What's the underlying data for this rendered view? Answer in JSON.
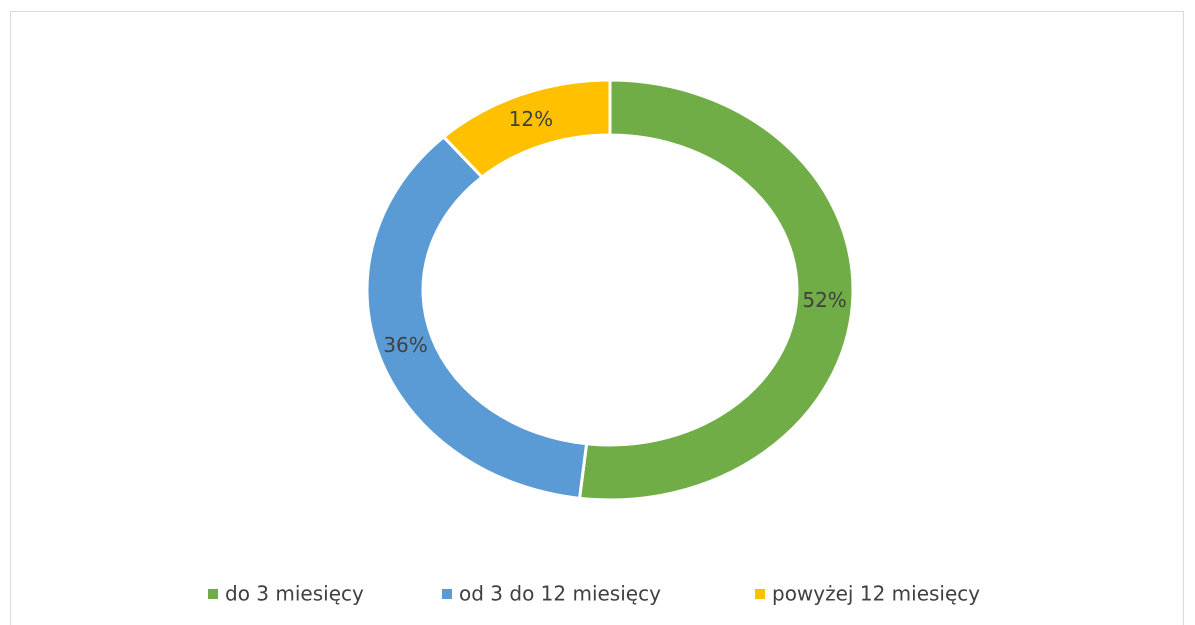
{
  "chart_data": {
    "type": "donut",
    "categories": [
      "do 3 miesięcy",
      "od 3 do 12 miesięcy",
      "powyżej 12 miesięcy"
    ],
    "values": [
      52,
      36,
      12
    ],
    "value_labels": [
      "52%",
      "36%",
      "12%"
    ],
    "colors": [
      "#70ad47",
      "#5b9bd5",
      "#ffc000"
    ],
    "legend": "bottom"
  }
}
